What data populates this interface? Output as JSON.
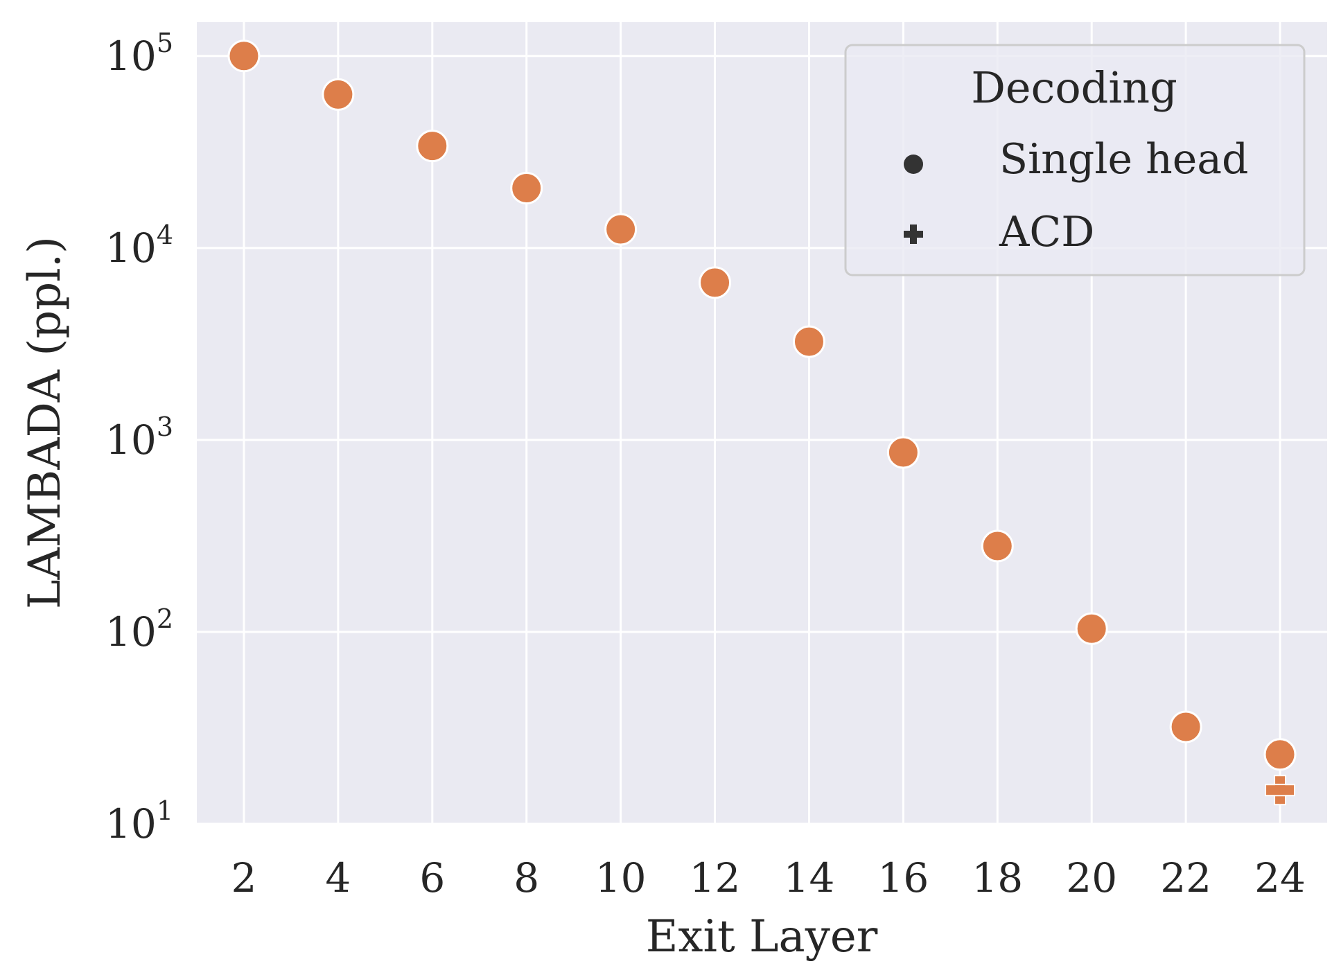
{
  "chart_data": {
    "type": "scatter",
    "xlabel": "Exit Layer",
    "ylabel": "LAMBADA (ppl.)",
    "yscale": "log",
    "ylim": [
      10,
      150000
    ],
    "xlim": [
      1,
      25
    ],
    "xticks": [
      2,
      4,
      6,
      8,
      10,
      12,
      14,
      16,
      18,
      20,
      22,
      24
    ],
    "yticks": [
      {
        "base": "10",
        "exp": "1",
        "value": 10
      },
      {
        "base": "10",
        "exp": "2",
        "value": 100
      },
      {
        "base": "10",
        "exp": "3",
        "value": 1000
      },
      {
        "base": "10",
        "exp": "4",
        "value": 10000
      },
      {
        "base": "10",
        "exp": "5",
        "value": 100000
      }
    ],
    "grid": true,
    "legend": {
      "title": "Decoding",
      "placement": "top-right",
      "entries": [
        {
          "label": "Single head",
          "marker": "circle"
        },
        {
          "label": "ACD",
          "marker": "plus"
        }
      ]
    },
    "colors": {
      "point": "#dd7e4a",
      "background": "#eaeaf2",
      "grid": "#ffffff",
      "text": "#262626",
      "legend_marker": "#333333"
    },
    "series": [
      {
        "name": "Single head",
        "marker": "circle",
        "x": [
          2,
          4,
          6,
          8,
          10,
          12,
          14,
          16,
          18,
          20,
          22,
          24
        ],
        "y": [
          100000,
          63000,
          34000,
          20500,
          12500,
          6600,
          3250,
          860,
          280,
          104,
          32,
          23
        ]
      },
      {
        "name": "ACD",
        "marker": "plus",
        "x": [
          24
        ],
        "y": [
          15
        ]
      }
    ]
  }
}
